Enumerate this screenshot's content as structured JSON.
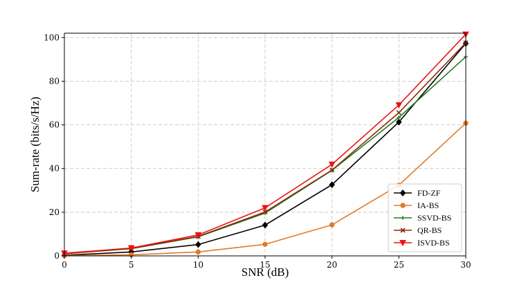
{
  "chart_data": {
    "type": "line",
    "title": "",
    "xlabel": "SNR (dB)",
    "ylabel": "Sum-rate (bits/s/Hz)",
    "xlim": [
      0,
      30
    ],
    "ylim": [
      0,
      102
    ],
    "xticks": [
      0,
      5,
      10,
      15,
      20,
      25,
      30
    ],
    "yticks": [
      0,
      20,
      40,
      60,
      80,
      100
    ],
    "grid": true,
    "legend_position": "bottom-right",
    "x": [
      0,
      5,
      10,
      15,
      20,
      25,
      30
    ],
    "series": [
      {
        "name": "FD-ZF",
        "color": "#000000",
        "marker": "diamond",
        "values": [
          0.3,
          1.8,
          5.2,
          14.1,
          32.6,
          61.3,
          97.3
        ]
      },
      {
        "name": "IA-BS",
        "color": "#e07b28",
        "marker": "circle",
        "values": [
          0.1,
          0.5,
          1.8,
          5.3,
          14.2,
          32.4,
          60.8
        ]
      },
      {
        "name": "SSVD-BS",
        "color": "#1e7b1e",
        "marker": "plus",
        "values": [
          1.0,
          3.3,
          8.7,
          19.6,
          39.2,
          63.4,
          91.2
        ]
      },
      {
        "name": "QR-BS",
        "color": "#8b2a0e",
        "marker": "x",
        "values": [
          1.0,
          3.4,
          8.9,
          20.1,
          39.3,
          65.6,
          97.6
        ]
      },
      {
        "name": "ISVD-BS",
        "color": "#ee1111",
        "marker": "triangle-down",
        "values": [
          1.2,
          3.6,
          9.6,
          22.0,
          41.9,
          69.1,
          101.5
        ]
      }
    ]
  }
}
